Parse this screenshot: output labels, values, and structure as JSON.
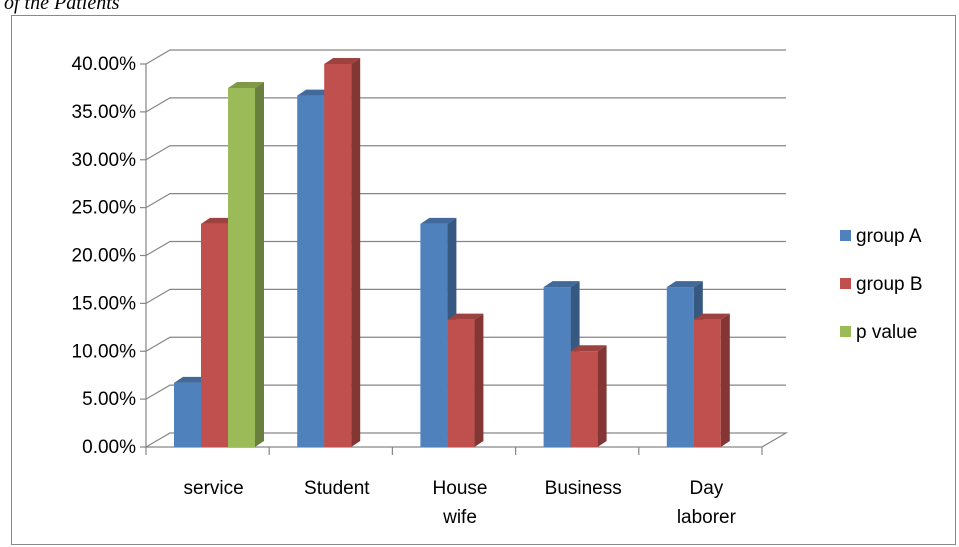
{
  "header": {
    "text": "of the Patients"
  },
  "chart_data": {
    "type": "bar",
    "title": "",
    "xlabel": "",
    "ylabel": "",
    "ylim": [
      0,
      0.4
    ],
    "y_tick_labels": [
      "0.00%",
      "5.00%",
      "10.00%",
      "15.00%",
      "20.00%",
      "25.00%",
      "30.00%",
      "35.00%",
      "40.00%"
    ],
    "y_tick_values": [
      0,
      0.05,
      0.1,
      0.15,
      0.2,
      0.25,
      0.3,
      0.35,
      0.4
    ],
    "categories": [
      {
        "label": "service",
        "lines": [
          "service"
        ]
      },
      {
        "label": "Student",
        "lines": [
          "Student"
        ]
      },
      {
        "label": "House wife",
        "lines": [
          "House",
          "wife"
        ]
      },
      {
        "label": "Business",
        "lines": [
          "Business"
        ]
      },
      {
        "label": "Day laborer",
        "lines": [
          "Day",
          "laborer"
        ]
      }
    ],
    "series": [
      {
        "name": "group A",
        "color": "#4f81bd",
        "values": [
          0.067,
          0.367,
          0.233,
          0.167,
          0.167
        ]
      },
      {
        "name": "group B",
        "color": "#c0504d",
        "values": [
          0.233,
          0.4,
          0.133,
          0.1,
          0.133
        ]
      },
      {
        "name": "p value",
        "color": "#9bbb59",
        "values": [
          0.375,
          null,
          null,
          null,
          null
        ]
      }
    ],
    "grid": true,
    "legend": "right",
    "style": "3d-column"
  }
}
